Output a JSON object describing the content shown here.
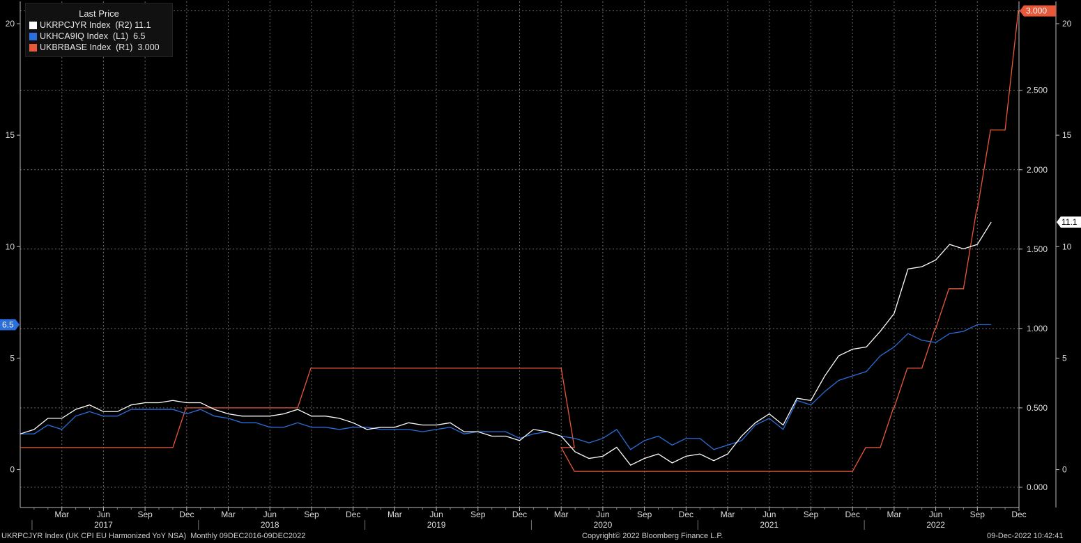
{
  "legend": {
    "title": "Last Price",
    "items": [
      {
        "label": "UKRPCJYR Index  (R2) 11.1",
        "color": "#ffffff"
      },
      {
        "label": "UKHCA9IQ Index  (L1)  6.5",
        "color": "#2a6fdb"
      },
      {
        "label": "UKBRBASE Index  (R1)  3.000",
        "color": "#e8593a"
      }
    ]
  },
  "footer": {
    "left": "UKRPCJYR Index (UK CPI EU Harmonized YoY NSA)  Monthly 09DEC2016-09DEC2022",
    "center": "Copyright© 2022 Bloomberg Finance L.P.",
    "right": "09-Dec-2022 10:42:41"
  },
  "colors": {
    "background": "#000000",
    "grid": "#6a6a6a",
    "cpi": "#ffffff",
    "ukhca": "#2a6fdb",
    "bank_rate": "#e8593a"
  },
  "chart_data": {
    "type": "line",
    "grid": true,
    "legend_position": "top-left",
    "x_ticks": [
      "Mar",
      "Jun",
      "Sep",
      "Dec",
      "Mar",
      "Jun",
      "Sep",
      "Dec",
      "Mar",
      "Jun",
      "Sep",
      "Dec",
      "Mar",
      "Jun",
      "Sep",
      "Dec",
      "Mar",
      "Jun",
      "Sep",
      "Dec",
      "Mar",
      "Jun",
      "Sep",
      "Dec"
    ],
    "x_years": [
      "2017",
      "2018",
      "2019",
      "2020",
      "2021",
      "2022"
    ],
    "x_range": [
      "2016-12",
      "2022-12"
    ],
    "axes": {
      "left": {
        "ticks": [
          "20",
          "15",
          "10",
          "5",
          "0"
        ],
        "range": [
          -1.7,
          21
        ]
      },
      "right_r1": {
        "ticks": [
          "3.000",
          "2.500",
          "2.000",
          "1.500",
          "1.000",
          "0.500",
          "0.000"
        ],
        "range": [
          -0.1275,
          3.06
        ]
      },
      "right_r2": {
        "ticks": [
          "20",
          "15",
          "10",
          "5",
          "0"
        ],
        "range": [
          -1.7,
          21
        ]
      }
    },
    "last_value_tags": {
      "left": "6.5",
      "r1": "3.000",
      "r2": "11.1"
    },
    "series": [
      {
        "name": "UKRPCJYR Index",
        "axis": "R2",
        "start": "2016-12",
        "values": [
          1.6,
          1.8,
          2.3,
          2.3,
          2.7,
          2.9,
          2.6,
          2.6,
          2.9,
          3.0,
          3.0,
          3.1,
          3.0,
          3.0,
          2.7,
          2.5,
          2.4,
          2.4,
          2.4,
          2.5,
          2.7,
          2.4,
          2.4,
          2.3,
          2.1,
          1.8,
          1.9,
          1.9,
          2.1,
          2.0,
          2.0,
          2.1,
          1.7,
          1.7,
          1.5,
          1.5,
          1.3,
          1.8,
          1.7,
          1.5,
          0.8,
          0.5,
          0.6,
          1.0,
          0.2,
          0.5,
          0.7,
          0.3,
          0.6,
          0.7,
          0.4,
          0.7,
          1.5,
          2.1,
          2.5,
          2.0,
          3.2,
          3.1,
          4.2,
          5.1,
          5.4,
          5.5,
          6.2,
          7.0,
          9.0,
          9.1,
          9.4,
          10.1,
          9.9,
          10.1,
          11.1
        ]
      },
      {
        "name": "UKHCA9IQ Index",
        "axis": "L1",
        "start": "2016-12",
        "values": [
          1.6,
          1.6,
          2.0,
          1.8,
          2.4,
          2.6,
          2.4,
          2.4,
          2.7,
          2.7,
          2.7,
          2.7,
          2.5,
          2.7,
          2.4,
          2.3,
          2.1,
          2.1,
          1.9,
          1.9,
          2.1,
          1.9,
          1.9,
          1.8,
          1.9,
          1.9,
          1.8,
          1.8,
          1.8,
          1.7,
          1.8,
          1.9,
          1.6,
          1.7,
          1.7,
          1.7,
          1.4,
          1.6,
          1.7,
          1.5,
          1.4,
          1.2,
          1.4,
          1.8,
          0.9,
          1.3,
          1.5,
          1.1,
          1.4,
          1.4,
          0.9,
          1.1,
          1.3,
          2.0,
          2.3,
          1.8,
          3.1,
          2.9,
          3.5,
          4.0,
          4.2,
          4.4,
          5.1,
          5.5,
          6.1,
          5.8,
          5.7,
          6.1,
          6.2,
          6.5,
          6.5
        ]
      },
      {
        "name": "UKBRBASE Index",
        "axis": "R1",
        "steps": [
          {
            "date": "2016-12",
            "value": 0.25
          },
          {
            "date": "2017-11",
            "value": 0.5
          },
          {
            "date": "2018-08",
            "value": 0.75
          },
          {
            "date": "2020-03",
            "value": 0.25
          },
          {
            "date": "2020-03",
            "value": 0.1
          },
          {
            "date": "2021-12",
            "value": 0.25
          },
          {
            "date": "2022-02",
            "value": 0.5
          },
          {
            "date": "2022-03",
            "value": 0.75
          },
          {
            "date": "2022-05",
            "value": 1.0
          },
          {
            "date": "2022-06",
            "value": 1.25
          },
          {
            "date": "2022-08",
            "value": 1.75
          },
          {
            "date": "2022-09",
            "value": 2.25
          },
          {
            "date": "2022-11",
            "value": 3.0
          },
          {
            "date": "2022-12",
            "value": 3.0
          }
        ]
      }
    ]
  }
}
